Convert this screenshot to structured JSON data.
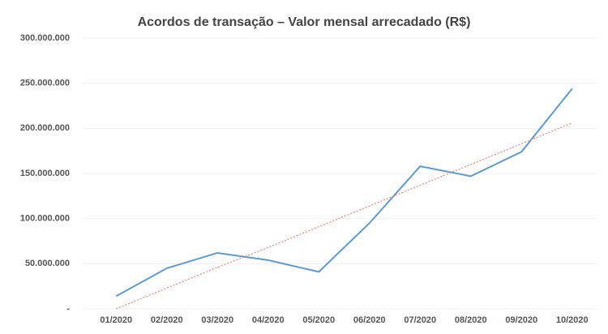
{
  "chart_data": {
    "type": "line",
    "title": "Acordos de transação – Valor mensal arrecadado (R$)",
    "categories": [
      "01/2020",
      "02/2020",
      "03/2020",
      "04/2020",
      "05/2020",
      "06/2020",
      "07/2020",
      "08/2020",
      "09/2020",
      "10/2020"
    ],
    "series": [
      {
        "color": "#5b9bd5",
        "values": [
          14000000,
          45000000,
          62000000,
          54000000,
          41000000,
          95000000,
          158000000,
          147000000,
          174000000,
          244000000
        ]
      },
      {
        "color": "#f08080",
        "dashed": true,
        "values": [
          0,
          23000000,
          46000000,
          68000000,
          91000000,
          114000000,
          137000000,
          160000000,
          183000000,
          206000000
        ]
      }
    ],
    "ylim": [
      0,
      300000000
    ],
    "yticks": [
      {
        "value": 0,
        "label": "-"
      },
      {
        "value": 50000000,
        "label": "50.000.000"
      },
      {
        "value": 100000000,
        "label": "100.000.000"
      },
      {
        "value": 150000000,
        "label": "150.000.000"
      },
      {
        "value": 200000000,
        "label": "200.000.000"
      },
      {
        "value": 250000000,
        "label": "250.000.000"
      },
      {
        "value": 300000000,
        "label": "300.000.000"
      }
    ],
    "grid": true
  }
}
